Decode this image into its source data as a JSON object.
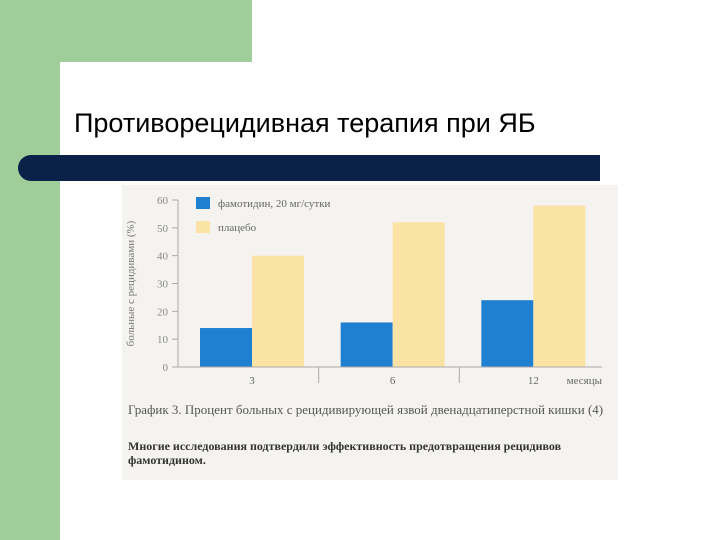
{
  "slide": {
    "title": "Противорецидивная терапия при ЯБ"
  },
  "colors": {
    "green": "#9fce9b",
    "navy": "#0c2147",
    "famotidine": "#1f7fd0",
    "placebo": "#fbe3a6"
  },
  "chart_data": {
    "type": "bar",
    "categories": [
      "3",
      "6",
      "12"
    ],
    "series": [
      {
        "name": "фамотидин, 20 мг/сутки",
        "values": [
          14,
          16,
          24
        ]
      },
      {
        "name": "плацебо",
        "values": [
          40,
          52,
          58
        ]
      }
    ],
    "ylabel": "больные с рецидивами (%)",
    "xlabel": "месяцы",
    "ylim": [
      0,
      60
    ],
    "yticks": [
      "0",
      "10",
      "20",
      "30",
      "40",
      "50",
      "60"
    ],
    "legend_position": "top-left",
    "grid": false,
    "caption": "График 3. Процент больных с рецидивирующей язвой двенадцатиперстной кишки (4)",
    "note": "Многие исследования подтвердили эффективность предотвращения рецидивов фамотидином."
  }
}
